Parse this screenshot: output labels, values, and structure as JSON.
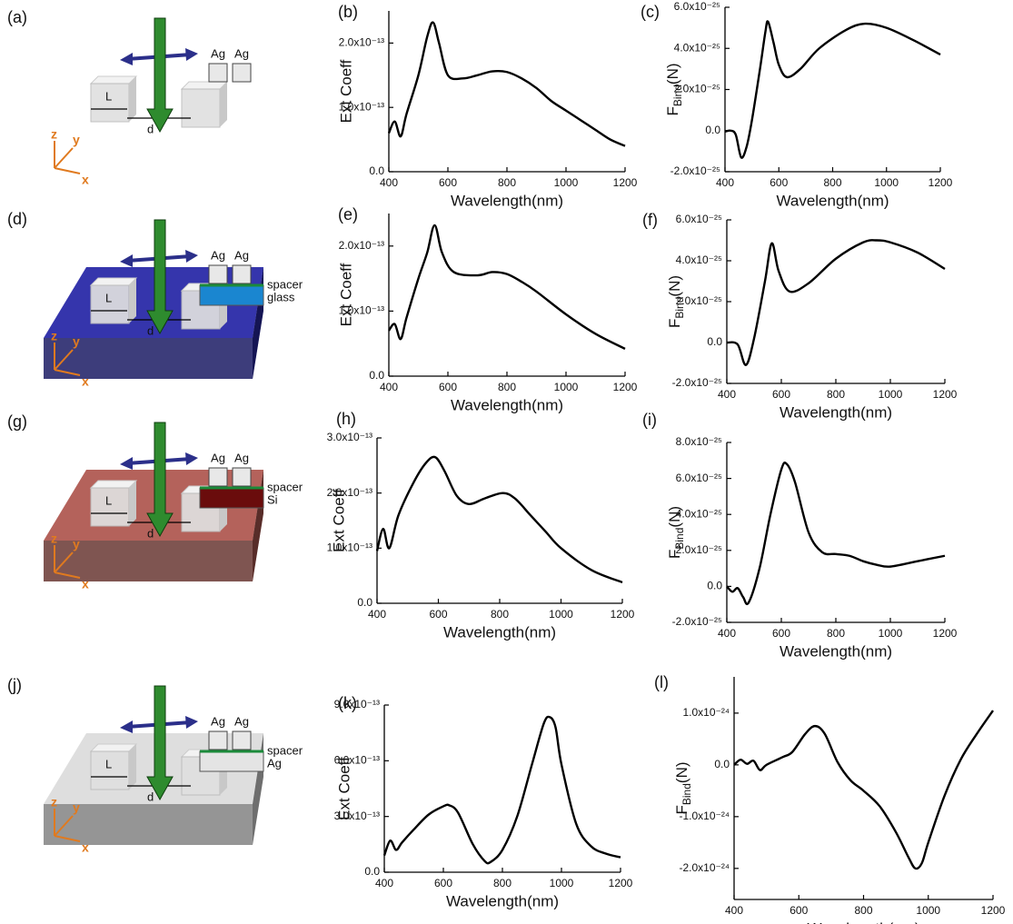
{
  "chart_data": [
    {
      "type": "line",
      "panel": "(b)",
      "ylabel": "Ext Coeff",
      "xlabel": "Wavelength(nm)",
      "xlim": [
        400,
        1200
      ],
      "xticks": [
        400,
        600,
        800,
        1000,
        1200
      ],
      "ylim": [
        0,
        2.5e-13
      ],
      "yticks": [
        {
          "value": 0,
          "label": "0.0"
        },
        {
          "value": 1e-13,
          "label": "1.0x10⁻¹³"
        },
        {
          "value": 2e-13,
          "label": "2.0x10⁻¹³"
        }
      ],
      "color": "#000000",
      "x": [
        400,
        420,
        440,
        460,
        500,
        530,
        550,
        570,
        600,
        650,
        700,
        750,
        800,
        850,
        900,
        950,
        1000,
        1050,
        1100,
        1150,
        1200
      ],
      "values": [
        6e-14,
        7.8e-14,
        5.5e-14,
        9e-14,
        1.5e-13,
        2.1e-13,
        2.32e-13,
        2e-13,
        1.5e-13,
        1.45e-13,
        1.5e-13,
        1.56e-13,
        1.55e-13,
        1.45e-13,
        1.3e-13,
        1.1e-13,
        9.5e-14,
        8e-14,
        6.5e-14,
        5e-14,
        4e-14
      ]
    },
    {
      "type": "line",
      "panel": "(c)",
      "ylabel": [
        "F",
        "Bind",
        "(N)"
      ],
      "xlabel": "Wavelength(nm)",
      "xlim": [
        400,
        1200
      ],
      "xticks": [
        400,
        600,
        800,
        1000,
        1200
      ],
      "ylim": [
        -2e-25,
        6e-25
      ],
      "yticks": [
        {
          "value": -2e-25,
          "label": "-2.0x10⁻²⁵"
        },
        {
          "value": 0,
          "label": "0.0"
        },
        {
          "value": 2e-25,
          "label": "2.0x10⁻²⁵"
        },
        {
          "value": 4e-25,
          "label": "4.0x10⁻²⁵"
        },
        {
          "value": 6e-25,
          "label": "6.0x10⁻²⁵"
        }
      ],
      "color": "#000000",
      "x": [
        400,
        420,
        440,
        460,
        480,
        500,
        530,
        550,
        560,
        580,
        600,
        630,
        680,
        750,
        850,
        920,
        1000,
        1100,
        1200
      ],
      "values": [
        -5e-27,
        0,
        -2e-26,
        -1.3e-25,
        -8e-26,
        5e-26,
        3e-25,
        4.8e-25,
        5.3e-25,
        4.3e-25,
        3.2e-25,
        2.6e-25,
        3e-25,
        4e-25,
        4.9e-25,
        5.2e-25,
        5e-25,
        4.4e-25,
        3.7e-25
      ]
    },
    {
      "type": "line",
      "panel": "(e)",
      "ylabel": "Ext Coeff",
      "xlabel": "Wavelength(nm)",
      "xlim": [
        400,
        1200
      ],
      "xticks": [
        400,
        600,
        800,
        1000,
        1200
      ],
      "ylim": [
        0,
        2.5e-13
      ],
      "yticks": [
        {
          "value": 0,
          "label": "0.0"
        },
        {
          "value": 1e-13,
          "label": "1.0x10⁻¹³"
        },
        {
          "value": 2e-13,
          "label": "2.0x10⁻¹³"
        }
      ],
      "color": "#000000",
      "x": [
        400,
        420,
        440,
        460,
        500,
        530,
        555,
        580,
        620,
        700,
        750,
        800,
        850,
        900,
        1000,
        1100,
        1200
      ],
      "values": [
        7e-14,
        8e-14,
        5.7e-14,
        9e-14,
        1.5e-13,
        1.9e-13,
        2.32e-13,
        1.9e-13,
        1.6e-13,
        1.55e-13,
        1.6e-13,
        1.57e-13,
        1.45e-13,
        1.3e-13,
        9.5e-14,
        6.5e-14,
        4.2e-14
      ]
    },
    {
      "type": "line",
      "panel": "(f)",
      "ylabel": [
        "F",
        "Bind",
        "(N)"
      ],
      "xlabel": "Wavelength(nm)",
      "xlim": [
        400,
        1200
      ],
      "xticks": [
        400,
        600,
        800,
        1000,
        1200
      ],
      "ylim": [
        -2e-25,
        6e-25
      ],
      "yticks": [
        {
          "value": -2e-25,
          "label": "-2.0x10⁻²⁵"
        },
        {
          "value": 0,
          "label": "0.0"
        },
        {
          "value": 2e-25,
          "label": "2.0x10⁻²⁵"
        },
        {
          "value": 4e-25,
          "label": "4.0x10⁻²⁵"
        },
        {
          "value": 6e-25,
          "label": "6.0x10⁻²⁵"
        }
      ],
      "color": "#000000",
      "x": [
        400,
        440,
        470,
        500,
        540,
        565,
        590,
        630,
        700,
        800,
        900,
        950,
        1000,
        1100,
        1200
      ],
      "values": [
        0,
        -1e-26,
        -1.1e-25,
        2e-26,
        3e-25,
        4.85e-25,
        3.5e-25,
        2.5e-25,
        2.9e-25,
        4.1e-25,
        4.9e-25,
        5e-25,
        4.9e-25,
        4.4e-25,
        3.6e-25
      ]
    },
    {
      "type": "line",
      "panel": "(h)",
      "ylabel": "Ext Coeff",
      "xlabel": "Wavelength(nm)",
      "xlim": [
        400,
        1200
      ],
      "xticks": [
        400,
        600,
        800,
        1000,
        1200
      ],
      "ylim": [
        0,
        3e-13
      ],
      "yticks": [
        {
          "value": 0,
          "label": "0.0"
        },
        {
          "value": 1e-13,
          "label": "1.0x10⁻¹³"
        },
        {
          "value": 2e-13,
          "label": "2.0x10⁻¹³"
        },
        {
          "value": 3e-13,
          "label": "3.0x10⁻¹³"
        }
      ],
      "color": "#000000",
      "x": [
        400,
        420,
        440,
        470,
        520,
        560,
        590,
        620,
        660,
        700,
        750,
        810,
        850,
        900,
        950,
        1000,
        1100,
        1200
      ],
      "values": [
        9.5e-14,
        1.35e-13,
        1e-13,
        1.6e-13,
        2.2e-13,
        2.55e-13,
        2.65e-13,
        2.4e-13,
        1.95e-13,
        1.8e-13,
        1.9e-13,
        2e-13,
        1.9e-13,
        1.6e-13,
        1.3e-13,
        1e-13,
        6e-14,
        3.8e-14
      ]
    },
    {
      "type": "line",
      "panel": "(i)",
      "ylabel": [
        "F",
        "Bind",
        "(N)"
      ],
      "xlabel": "Wavelength(nm)",
      "xlim": [
        400,
        1200
      ],
      "xticks": [
        400,
        600,
        800,
        1000,
        1200
      ],
      "ylim": [
        -2e-25,
        8e-25
      ],
      "yticks": [
        {
          "value": -2e-25,
          "label": "-2.0x10⁻²⁵"
        },
        {
          "value": 0,
          "label": "0.0"
        },
        {
          "value": 2e-25,
          "label": "2.0x10⁻²⁵"
        },
        {
          "value": 4e-25,
          "label": "4.0x10⁻²⁵"
        },
        {
          "value": 6e-25,
          "label": "6.0x10⁻²⁵"
        },
        {
          "value": 8e-25,
          "label": "8.0x10⁻²⁵"
        }
      ],
      "color": "#000000",
      "x": [
        400,
        420,
        440,
        460,
        480,
        520,
        560,
        600,
        620,
        650,
        700,
        750,
        800,
        850,
        900,
        950,
        1000,
        1100,
        1200
      ],
      "values": [
        0,
        -3e-26,
        -1e-26,
        -6e-26,
        -9e-26,
        1e-25,
        4e-25,
        6.5e-25,
        6.8e-25,
        5.8e-25,
        3e-25,
        1.9e-25,
        1.8e-25,
        1.7e-25,
        1.4e-25,
        1.2e-25,
        1.1e-25,
        1.4e-25,
        1.7e-25
      ]
    },
    {
      "type": "line",
      "panel": "(k)",
      "ylabel": "Ext Coeff",
      "xlabel": "Wavelength(nm)",
      "xlim": [
        400,
        1200
      ],
      "xticks": [
        400,
        600,
        800,
        1000,
        1200
      ],
      "ylim": [
        0,
        9e-13
      ],
      "yticks": [
        {
          "value": 0,
          "label": "0.0"
        },
        {
          "value": 3e-13,
          "label": "3.0x10⁻¹³"
        },
        {
          "value": 6e-13,
          "label": "6.0x10⁻¹³"
        },
        {
          "value": 9e-13,
          "label": "9.0x10⁻¹³"
        }
      ],
      "color": "#000000",
      "x": [
        400,
        420,
        440,
        460,
        500,
        550,
        600,
        620,
        650,
        700,
        740,
        760,
        800,
        850,
        900,
        940,
        960,
        980,
        1000,
        1050,
        1100,
        1150,
        1200
      ],
      "values": [
        9e-14,
        1.7e-13,
        1.2e-13,
        1.6e-13,
        2.3e-13,
        3.1e-13,
        3.55e-13,
        3.6e-13,
        3.2e-13,
        1.5e-13,
        6e-14,
        5.5e-14,
        1.2e-13,
        3e-13,
        5.8e-13,
        8e-13,
        8.35e-13,
        7.8e-13,
        5.8e-13,
        2.6e-13,
        1.4e-13,
        1e-13,
        8e-14
      ]
    },
    {
      "type": "line",
      "panel": "(l)",
      "ylabel": [
        "F",
        "Bind",
        "(N)"
      ],
      "xlabel": "Wavelength(nm)",
      "xlim": [
        400,
        1200
      ],
      "xticks": [
        400,
        600,
        800,
        1000,
        1200
      ],
      "ylim": [
        -2.6e-24,
        1.7e-24
      ],
      "yticks": [
        {
          "value": -2e-24,
          "label": "-2.0x10⁻²⁴"
        },
        {
          "value": -1e-24,
          "label": "-1.0x10⁻²⁴"
        },
        {
          "value": 0,
          "label": "0.0"
        },
        {
          "value": 1e-24,
          "label": "1.0x10⁻²⁴"
        }
      ],
      "color": "#000000",
      "x": [
        400,
        420,
        440,
        460,
        480,
        500,
        550,
        580,
        620,
        650,
        680,
        720,
        760,
        800,
        850,
        900,
        940,
        960,
        980,
        1000,
        1050,
        1100,
        1150,
        1200
      ],
      "values": [
        0,
        1e-25,
        2e-26,
        8e-26,
        -1e-25,
        0,
        1.5e-25,
        2.5e-25,
        6e-25,
        7.5e-25,
        6e-25,
        5e-26,
        -3e-25,
        -5e-25,
        -8e-25,
        -1.3e-24,
        -1.8e-24,
        -2e-24,
        -1.9e-24,
        -1.5e-24,
        -6e-25,
        1e-25,
        6e-25,
        1.05e-24
      ]
    }
  ],
  "diagrams": [
    {
      "label": "(a)",
      "cube_labels": [
        "Ag",
        "Ag"
      ],
      "length": "L",
      "gap": "d",
      "axes": [
        "z",
        "y",
        "x"
      ]
    },
    {
      "label": "(d)",
      "cube_labels": [
        "Ag",
        "Ag"
      ],
      "length": "L",
      "gap": "d",
      "axes": [
        "z",
        "y",
        "x"
      ],
      "layers": [
        "spacer",
        "glass"
      ],
      "substrate_color": "#2a2aa8",
      "layer_color": "#1a86d0"
    },
    {
      "label": "(g)",
      "cube_labels": [
        "Ag",
        "Ag"
      ],
      "length": "L",
      "gap": "d",
      "axes": [
        "z",
        "y",
        "x"
      ],
      "layers": [
        "spacer",
        "Si"
      ],
      "substrate_color": "#b05a52",
      "layer_color": "#6a0c0c"
    },
    {
      "label": "(j)",
      "cube_labels": [
        "Ag",
        "Ag"
      ],
      "length": "L",
      "gap": "d",
      "axes": [
        "z",
        "y",
        "x"
      ],
      "layers": [
        "spacer",
        "Ag"
      ],
      "substrate_color": "#dcdcdc",
      "layer_color": "#e4e4e4"
    }
  ]
}
